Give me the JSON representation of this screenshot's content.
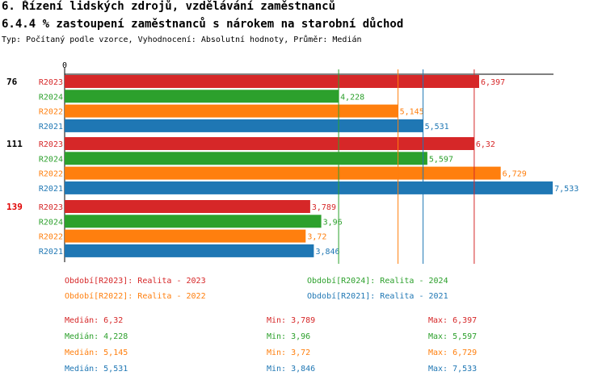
{
  "header": {
    "title": "6. Řízení lidských zdrojů, vzdělávání zaměstnanců",
    "subtitle": "6.4.4 % zastoupení zaměstnanců s nárokem na starobní důchod",
    "meta": "Typ: Počítaný podle vzorce, Vyhodnocení: Absolutní hodnoty, Průměr: Medián"
  },
  "chart_data": {
    "type": "bar",
    "orientation": "horizontal",
    "axis_zero_label": "0",
    "xlim": [
      0,
      8.3
    ],
    "groups": [
      {
        "label": "76",
        "highlight": false,
        "bars": [
          {
            "series": "R2023",
            "value": 6.397,
            "label": "6,397"
          },
          {
            "series": "R2024",
            "value": 4.228,
            "label": "4,228"
          },
          {
            "series": "R2022",
            "value": 5.145,
            "label": "5,145"
          },
          {
            "series": "R2021",
            "value": 5.531,
            "label": "5,531"
          }
        ]
      },
      {
        "label": "111",
        "highlight": false,
        "bars": [
          {
            "series": "R2023",
            "value": 6.32,
            "label": "6,32"
          },
          {
            "series": "R2024",
            "value": 5.597,
            "label": "5,597"
          },
          {
            "series": "R2022",
            "value": 6.729,
            "label": "6,729"
          },
          {
            "series": "R2021",
            "value": 7.533,
            "label": "7,533"
          }
        ]
      },
      {
        "label": "139",
        "highlight": true,
        "bars": [
          {
            "series": "R2023",
            "value": 3.789,
            "label": "3,789"
          },
          {
            "series": "R2024",
            "value": 3.96,
            "label": "3,96"
          },
          {
            "series": "R2022",
            "value": 3.72,
            "label": "3,72"
          },
          {
            "series": "R2021",
            "value": 3.846,
            "label": "3,846"
          }
        ]
      }
    ],
    "median_lines": [
      {
        "series": "R2023",
        "value": 6.32
      },
      {
        "series": "R2024",
        "value": 4.228
      },
      {
        "series": "R2022",
        "value": 5.145
      },
      {
        "series": "R2021",
        "value": 5.531
      }
    ],
    "colors": {
      "R2023": "#d62728",
      "R2024": "#2ca02c",
      "R2022": "#ff7f0e",
      "R2021": "#1f77b4",
      "highlight_label": "#e00000"
    }
  },
  "legend": [
    {
      "series": "R2023",
      "text": "Období[R2023]: Realita - 2023"
    },
    {
      "series": "R2024",
      "text": "Období[R2024]: Realita - 2024"
    },
    {
      "series": "R2022",
      "text": "Období[R2022]: Realita - 2022"
    },
    {
      "series": "R2021",
      "text": "Období[R2021]: Realita - 2021"
    }
  ],
  "stats": [
    {
      "series": "R2023",
      "median": "Medián: 6,32",
      "min": "Min: 3,789",
      "max": "Max: 6,397"
    },
    {
      "series": "R2024",
      "median": "Medián: 4,228",
      "min": "Min: 3,96",
      "max": "Max: 5,597"
    },
    {
      "series": "R2022",
      "median": "Medián: 5,145",
      "min": "Min: 3,72",
      "max": "Max: 6,729"
    },
    {
      "series": "R2021",
      "median": "Medián: 5,531",
      "min": "Min: 3,846",
      "max": "Max: 7,533"
    }
  ]
}
